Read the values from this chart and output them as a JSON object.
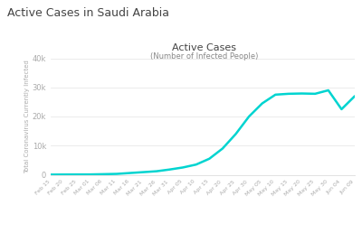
{
  "suptitle": "Active Cases in Saudi Arabia",
  "title": "Active Cases",
  "subtitle": "(Number of Infected People)",
  "ylabel": "Total Coronavirus Currently Infected",
  "line_color": "#00d4d0",
  "legend_label": "Currently Infected",
  "background_color": "#ffffff",
  "ylim": [
    0,
    40000
  ],
  "yticks": [
    0,
    10000,
    20000,
    30000,
    40000
  ],
  "ytick_labels": [
    "0",
    "10k",
    "20k",
    "30k",
    "40k"
  ],
  "x_dates": [
    "Feb 15",
    "Feb 20",
    "Feb 25",
    "Mar 01",
    "Mar 06",
    "Mar 11",
    "Mar 16",
    "Mar 21",
    "Mar 26",
    "Mar 31",
    "Apr 05",
    "Apr 10",
    "Apr 15",
    "Apr 20",
    "Apr 25",
    "Apr 30",
    "May 05",
    "May 10",
    "May 15",
    "May 20",
    "May 25",
    "May 30",
    "Jun 04",
    "Jun 09"
  ],
  "y_values": [
    50,
    80,
    100,
    110,
    200,
    300,
    600,
    900,
    1200,
    1800,
    2500,
    3500,
    5500,
    9000,
    14000,
    20000,
    24500,
    27500,
    27800,
    27900,
    27800,
    29000,
    22500,
    27000
  ],
  "suptitle_fontsize": 9,
  "title_fontsize": 8,
  "subtitle_fontsize": 6,
  "ylabel_fontsize": 5,
  "ytick_fontsize": 6,
  "xtick_fontsize": 4.5,
  "legend_fontsize": 6
}
